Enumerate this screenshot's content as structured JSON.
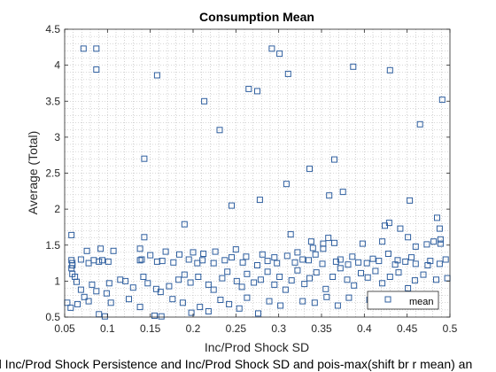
{
  "figure": {
    "caption": "d Inc/Prod Shock Persistence and Inc/Prod Shock SD and pois-max(shift br r mean) an"
  },
  "colors": {
    "marker": "#2f5f9f",
    "axes": "#262626",
    "grid": "#b3b3b3",
    "background": "#ffffff"
  },
  "chart_data": {
    "type": "scatter",
    "title": "Consumption Mean",
    "xlabel": "Inc/Prod Shock SD",
    "ylabel": "Average (Total)",
    "xlim": [
      0.05,
      0.5
    ],
    "ylim": [
      0.5,
      4.5
    ],
    "xticks": [
      "0.05",
      "0.1",
      "0.15",
      "0.2",
      "0.25",
      "0.3",
      "0.35",
      "0.4",
      "0.45",
      "0.5"
    ],
    "yticks": [
      "0.5",
      "1",
      "1.5",
      "2",
      "2.5",
      "3",
      "3.5",
      "4",
      "4.5"
    ],
    "grid": "minor-dotted",
    "legend": {
      "position": "bottom-right",
      "entries": [
        "mean"
      ]
    },
    "marker": "square",
    "series": [
      {
        "name": "mean",
        "points": [
          [
            0.072,
            4.23
          ],
          [
            0.087,
            4.23
          ],
          [
            0.087,
            3.94
          ],
          [
            0.158,
            3.86
          ],
          [
            0.143,
            2.7
          ],
          [
            0.213,
            3.5
          ],
          [
            0.231,
            3.1
          ],
          [
            0.265,
            3.67
          ],
          [
            0.275,
            3.64
          ],
          [
            0.292,
            4.23
          ],
          [
            0.301,
            4.16
          ],
          [
            0.311,
            3.88
          ],
          [
            0.387,
            3.98
          ],
          [
            0.43,
            3.93
          ],
          [
            0.491,
            3.52
          ],
          [
            0.465,
            3.18
          ],
          [
            0.365,
            2.69
          ],
          [
            0.336,
            2.56
          ],
          [
            0.309,
            2.35
          ],
          [
            0.359,
            2.19
          ],
          [
            0.375,
            2.24
          ],
          [
            0.278,
            2.13
          ],
          [
            0.245,
            2.05
          ],
          [
            0.453,
            2.12
          ],
          [
            0.485,
            1.88
          ],
          [
            0.19,
            1.79
          ],
          [
            0.429,
            1.81
          ],
          [
            0.424,
            1.77
          ],
          [
            0.442,
            1.73
          ],
          [
            0.488,
            1.73
          ],
          [
            0.058,
            1.64
          ],
          [
            0.314,
            1.65
          ],
          [
            0.358,
            1.6
          ],
          [
            0.143,
            1.61
          ],
          [
            0.451,
            1.61
          ],
          [
            0.489,
            1.58
          ],
          [
            0.481,
            1.55
          ],
          [
            0.473,
            1.51
          ],
          [
            0.489,
            1.52
          ],
          [
            0.398,
            1.52
          ],
          [
            0.421,
            1.55
          ],
          [
            0.46,
            1.48
          ],
          [
            0.338,
            1.55
          ],
          [
            0.352,
            1.52
          ],
          [
            0.34,
            1.46
          ],
          [
            0.352,
            1.45
          ],
          [
            0.365,
            1.53
          ],
          [
            0.25,
            1.44
          ],
          [
            0.138,
            1.45
          ],
          [
            0.092,
            1.45
          ],
          [
            0.076,
            1.42
          ],
          [
            0.107,
            1.42
          ],
          [
            0.15,
            1.36
          ],
          [
            0.168,
            1.41
          ],
          [
            0.184,
            1.37
          ],
          [
            0.2,
            1.4
          ],
          [
            0.212,
            1.38
          ],
          [
            0.226,
            1.41
          ],
          [
            0.245,
            1.33
          ],
          [
            0.262,
            1.34
          ],
          [
            0.281,
            1.37
          ],
          [
            0.295,
            1.33
          ],
          [
            0.31,
            1.35
          ],
          [
            0.322,
            1.4
          ],
          [
            0.328,
            1.3
          ],
          [
            0.343,
            1.37
          ],
          [
            0.372,
            1.3
          ],
          [
            0.386,
            1.34
          ],
          [
            0.41,
            1.31
          ],
          [
            0.428,
            1.38
          ],
          [
            0.439,
            1.29
          ],
          [
            0.455,
            1.33
          ],
          [
            0.477,
            1.28
          ],
          [
            0.495,
            1.3
          ],
          [
            0.058,
            1.29
          ],
          [
            0.059,
            1.25
          ],
          [
            0.059,
            1.22
          ],
          [
            0.058,
            1.18
          ],
          [
            0.069,
            1.3
          ],
          [
            0.078,
            1.25
          ],
          [
            0.084,
            1.29
          ],
          [
            0.09,
            1.27
          ],
          [
            0.094,
            1.29
          ],
          [
            0.101,
            1.27
          ],
          [
            0.138,
            1.29
          ],
          [
            0.14,
            1.3
          ],
          [
            0.158,
            1.27
          ],
          [
            0.164,
            1.28
          ],
          [
            0.177,
            1.26
          ],
          [
            0.195,
            1.3
          ],
          [
            0.205,
            1.25
          ],
          [
            0.211,
            1.29
          ],
          [
            0.224,
            1.25
          ],
          [
            0.237,
            1.29
          ],
          [
            0.258,
            1.26
          ],
          [
            0.275,
            1.22
          ],
          [
            0.287,
            1.28
          ],
          [
            0.298,
            1.25
          ],
          [
            0.319,
            1.26
          ],
          [
            0.335,
            1.29
          ],
          [
            0.351,
            1.24
          ],
          [
            0.367,
            1.27
          ],
          [
            0.381,
            1.23
          ],
          [
            0.393,
            1.26
          ],
          [
            0.403,
            1.25
          ],
          [
            0.417,
            1.28
          ],
          [
            0.436,
            1.23
          ],
          [
            0.448,
            1.27
          ],
          [
            0.46,
            1.24
          ],
          [
            0.474,
            1.22
          ],
          [
            0.488,
            1.24
          ],
          [
            0.059,
            1.1
          ],
          [
            0.062,
            1.06
          ],
          [
            0.064,
            0.99
          ],
          [
            0.069,
            0.88
          ],
          [
            0.082,
            0.95
          ],
          [
            0.087,
            0.86
          ],
          [
            0.099,
            0.83
          ],
          [
            0.102,
            0.97
          ],
          [
            0.115,
            1.02
          ],
          [
            0.121,
            1.0
          ],
          [
            0.13,
            0.91
          ],
          [
            0.142,
            1.06
          ],
          [
            0.147,
            0.97
          ],
          [
            0.157,
            0.89
          ],
          [
            0.162,
            0.85
          ],
          [
            0.172,
            0.93
          ],
          [
            0.183,
            1.02
          ],
          [
            0.19,
            1.09
          ],
          [
            0.197,
            0.98
          ],
          [
            0.206,
            1.06
          ],
          [
            0.218,
            0.95
          ],
          [
            0.224,
            0.88
          ],
          [
            0.234,
            1.04
          ],
          [
            0.24,
            1.13
          ],
          [
            0.251,
            1.0
          ],
          [
            0.257,
            0.92
          ],
          [
            0.263,
            1.1
          ],
          [
            0.271,
            0.98
          ],
          [
            0.279,
            1.02
          ],
          [
            0.287,
            1.13
          ],
          [
            0.295,
            0.95
          ],
          [
            0.301,
            1.06
          ],
          [
            0.308,
            0.88
          ],
          [
            0.315,
            1.01
          ],
          [
            0.322,
            1.15
          ],
          [
            0.33,
            0.96
          ],
          [
            0.336,
            1.04
          ],
          [
            0.344,
            1.12
          ],
          [
            0.355,
            0.89
          ],
          [
            0.363,
            1.06
          ],
          [
            0.372,
            1.18
          ],
          [
            0.38,
            1.02
          ],
          [
            0.388,
            0.94
          ],
          [
            0.396,
            1.11
          ],
          [
            0.404,
            1.05
          ],
          [
            0.413,
            1.14
          ],
          [
            0.421,
            0.97
          ],
          [
            0.43,
            1.06
          ],
          [
            0.44,
            1.12
          ],
          [
            0.451,
            0.9
          ],
          [
            0.459,
            1.01
          ],
          [
            0.469,
            1.09
          ],
          [
            0.484,
            1.02
          ],
          [
            0.497,
            1.04
          ],
          [
            0.053,
            0.7
          ],
          [
            0.057,
            0.63
          ],
          [
            0.065,
            0.68
          ],
          [
            0.073,
            0.78
          ],
          [
            0.078,
            0.72
          ],
          [
            0.09,
            0.54
          ],
          [
            0.097,
            0.51
          ],
          [
            0.104,
            0.7
          ],
          [
            0.125,
            0.75
          ],
          [
            0.138,
            0.64
          ],
          [
            0.155,
            0.52
          ],
          [
            0.163,
            0.51
          ],
          [
            0.176,
            0.75
          ],
          [
            0.188,
            0.7
          ],
          [
            0.198,
            0.56
          ],
          [
            0.208,
            0.64
          ],
          [
            0.218,
            0.58
          ],
          [
            0.232,
            0.74
          ],
          [
            0.242,
            0.68
          ],
          [
            0.254,
            0.62
          ],
          [
            0.263,
            0.77
          ],
          [
            0.276,
            0.55
          ],
          [
            0.289,
            0.72
          ],
          [
            0.302,
            0.66
          ],
          [
            0.328,
            0.72
          ],
          [
            0.342,
            0.7
          ],
          [
            0.356,
            0.78
          ],
          [
            0.369,
            0.66
          ],
          [
            0.382,
            0.77
          ],
          [
            0.406,
            0.74
          ]
        ]
      }
    ]
  }
}
